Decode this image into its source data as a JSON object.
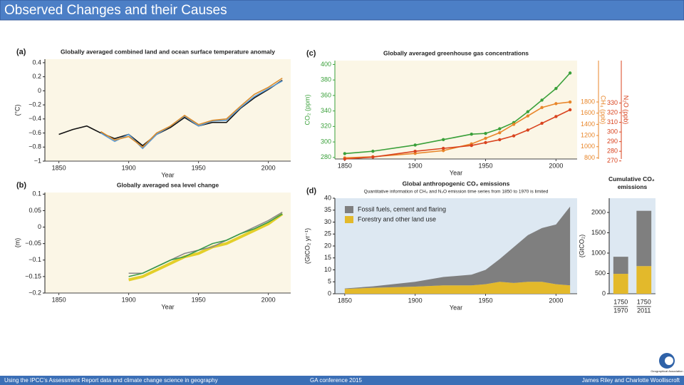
{
  "header": {
    "title": "Observed Changes and their Causes"
  },
  "chart_data": [
    {
      "type": "line",
      "panel": "(a)",
      "title": "Globally averaged combined land and ocean surface temperature anomaly",
      "xlabel": "Year",
      "ylabel": "(°C)",
      "x": [
        1850,
        1860,
        1870,
        1880,
        1890,
        1900,
        1910,
        1920,
        1930,
        1940,
        1950,
        1960,
        1970,
        1980,
        1990,
        2000,
        2010
      ],
      "series": [
        {
          "color": "#111111",
          "values": [
            -0.62,
            -0.55,
            -0.5,
            -0.6,
            -0.68,
            -0.62,
            -0.78,
            -0.62,
            -0.52,
            -0.38,
            -0.5,
            -0.45,
            -0.45,
            -0.25,
            -0.1,
            0.02,
            0.15
          ]
        },
        {
          "color": "#5b9bd5",
          "values": [
            null,
            null,
            null,
            -0.6,
            -0.72,
            -0.62,
            -0.82,
            -0.62,
            -0.5,
            -0.36,
            -0.5,
            -0.43,
            -0.42,
            -0.24,
            -0.08,
            0.03,
            0.14
          ]
        },
        {
          "color": "#d98c2e",
          "values": [
            null,
            null,
            null,
            -0.58,
            -0.7,
            -0.65,
            -0.8,
            -0.6,
            -0.5,
            -0.35,
            -0.48,
            -0.42,
            -0.4,
            -0.22,
            -0.05,
            0.05,
            0.18
          ]
        }
      ],
      "xlim": [
        1840,
        2016
      ],
      "xticks": [
        1850,
        1900,
        1950,
        2000
      ],
      "ylim": [
        -1,
        0.45
      ],
      "yticks": [
        0.4,
        0.2,
        0,
        {
          "value": -0.2,
          "label": "−0.2"
        },
        {
          "value": -0.4,
          "label": "−0.4"
        },
        {
          "value": -0.6,
          "label": "−0.6"
        },
        {
          "value": -0.8,
          "label": "−0.8"
        },
        {
          "value": -1,
          "label": "−1"
        }
      ]
    },
    {
      "type": "line",
      "markers": true,
      "panel": "(c)",
      "title": "Globally averaged greenhouse gas concentrations",
      "xlabel": "Year",
      "ylabel": "CO₂ (ppm)",
      "y2label": "CH₄ (ppb)",
      "y3label": "N₂O (ppb)",
      "x": [
        1850,
        1870,
        1900,
        1920,
        1940,
        1950,
        1960,
        1970,
        1980,
        1990,
        2000,
        2010
      ],
      "series": [
        {
          "color": "#3aa03a",
          "values": [
            285,
            288,
            296,
            303,
            310,
            311,
            317,
            325,
            339,
            354,
            369,
            389
          ]
        },
        {
          "color": "#e8862a",
          "axis": "y2",
          "values": [
            800,
            820,
            880,
            930,
            1050,
            1150,
            1250,
            1400,
            1550,
            1700,
            1770,
            1800
          ]
        },
        {
          "color": "#d9431e",
          "axis": "y3",
          "values": [
            272,
            274,
            280,
            283,
            286,
            289,
            292,
            296,
            302,
            309,
            316,
            323
          ]
        }
      ],
      "xlim": [
        1843,
        2015
      ],
      "xticks": [
        1850,
        1900,
        1950,
        2000
      ],
      "ylim": [
        278,
        405
      ],
      "yticks": [
        280,
        300,
        320,
        340,
        360,
        380,
        400
      ],
      "y2lim": [
        780,
        2540
      ],
      "y2ticks": [
        800,
        1000,
        1200,
        1400,
        1600,
        1800
      ],
      "y3lim": [
        272,
        374
      ],
      "y3ticks": [
        270,
        280,
        290,
        300,
        310,
        320,
        330
      ]
    },
    {
      "type": "line",
      "panel": "(b)",
      "title": "Globally averaged sea level change",
      "xlabel": "Year",
      "ylabel": "(m)",
      "x": [
        1900,
        1910,
        1920,
        1930,
        1940,
        1950,
        1960,
        1970,
        1980,
        1990,
        2000,
        2010
      ],
      "series": [
        {
          "color": "#e3cf2a",
          "values": [
            -0.16,
            -0.15,
            -0.13,
            -0.11,
            -0.09,
            -0.08,
            -0.06,
            -0.05,
            -0.03,
            -0.01,
            0.01,
            0.04
          ]
        },
        {
          "color": "#888888",
          "values": [
            -0.14,
            -0.14,
            -0.12,
            -0.1,
            -0.08,
            -0.07,
            -0.06,
            -0.04,
            -0.02,
            0,
            0.02,
            0.045
          ]
        },
        {
          "color": "#3a9a4a",
          "values": [
            -0.15,
            -0.14,
            -0.12,
            -0.1,
            -0.09,
            -0.07,
            -0.05,
            -0.04,
            -0.02,
            -0.005,
            0.015,
            0.04
          ]
        }
      ],
      "xlim": [
        1840,
        2016
      ],
      "xticks": [
        1850,
        1900,
        1950,
        2000
      ],
      "ylim": [
        -0.2,
        0.105
      ],
      "yticks": [
        0.1,
        0.05,
        0,
        {
          "value": -0.05,
          "label": "−0.05"
        },
        {
          "value": -0.1,
          "label": "−0.1"
        },
        {
          "value": -0.15,
          "label": "−0.15"
        },
        {
          "value": -0.2,
          "label": "−0.2"
        }
      ]
    },
    {
      "type": "area",
      "stacked": true,
      "panel": "(d)",
      "title": "Global anthropogenic CO₂ emissions",
      "subtitle": "Quantitative information of CH₄ and N₂O emission time series from 1850 to 1970 is limited",
      "xlabel": "Year",
      "ylabel": "(GtCO₂ yr⁻¹)",
      "x": [
        1850,
        1870,
        1900,
        1920,
        1940,
        1950,
        1960,
        1970,
        1980,
        1990,
        2000,
        2010
      ],
      "series": [
        {
          "name": "Forestry and other land use",
          "color": "#e3b92b",
          "values": [
            2,
            2.5,
            3,
            3.5,
            3.5,
            4,
            5,
            4.5,
            5,
            5,
            4,
            3.5
          ]
        },
        {
          "name": "Fossil fuels, cement and flaring",
          "color": "#7f7f7f",
          "values": [
            0.2,
            0.6,
            2,
            3.5,
            4.5,
            6,
            9.5,
            15,
            19.5,
            22.5,
            25,
            33
          ]
        }
      ],
      "xlim": [
        1843,
        2015
      ],
      "xticks": [
        1850,
        1900,
        1950,
        2000
      ],
      "ylim": [
        0,
        40
      ],
      "yticks": [
        0,
        5,
        10,
        15,
        20,
        25,
        30,
        35,
        40
      ]
    },
    {
      "type": "bar",
      "stacked": true,
      "title": "Cumulative CO₂ emissions",
      "ylabel": "(GtCO₂)",
      "categories": [
        [
          "1750",
          "1970"
        ],
        [
          "1750",
          "2011"
        ]
      ],
      "series": [
        {
          "color": "#e3b92b",
          "values": [
            490,
            680
          ]
        },
        {
          "color": "#7f7f7f",
          "values": [
            420,
            1360
          ]
        }
      ],
      "ylim": [
        0,
        2350
      ],
      "yticks": [
        0,
        500,
        1000,
        1500,
        2000
      ]
    }
  ],
  "footer": {
    "left": "Using the IPCC’s Assessment Report data and climate change science in geography",
    "center": "GA conference 2015",
    "right": "James Riley and Charlotte Woolliscroft"
  },
  "logo": {
    "text": "Geographical Association"
  }
}
